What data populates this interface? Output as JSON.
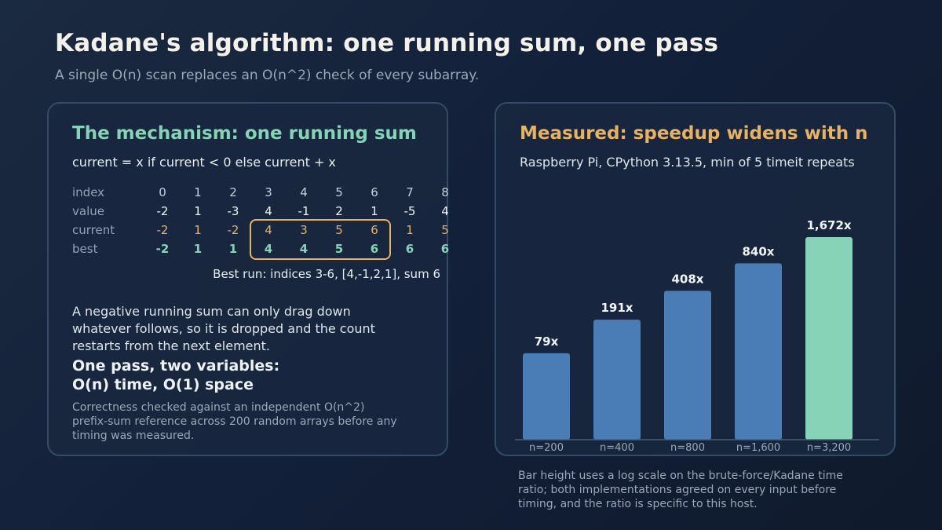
{
  "header": {
    "title": "Kadane's algorithm: one running sum, one pass",
    "subtitle": "A single O(n) scan replaces an O(n^2) check of every subarray."
  },
  "left": {
    "title": "The mechanism: one running sum",
    "formula": "current = x if current < 0 else current + x",
    "row_labels": [
      "index",
      "value",
      "current",
      "best"
    ],
    "index": [
      "0",
      "1",
      "2",
      "3",
      "4",
      "5",
      "6",
      "7",
      "8"
    ],
    "value": [
      "-2",
      "1",
      "-3",
      "4",
      "-1",
      "2",
      "1",
      "-5",
      "4"
    ],
    "current": [
      "-2",
      "1",
      "-2",
      "4",
      "3",
      "5",
      "6",
      "1",
      "5"
    ],
    "best": [
      "-2",
      "1",
      "1",
      "4",
      "4",
      "5",
      "6",
      "6",
      "6"
    ],
    "best_run": "Best run: indices 3-6, [4,-1,2,1], sum 6",
    "paragraph": "A negative running sum can only drag down whatever follows, so it is dropped and the count restarts from the next element.",
    "pass_line1": "One pass, two variables:",
    "pass_line2": "O(n) time, O(1) space",
    "note": "Correctness checked against an independent O(n^2) prefix-sum reference across 200 random arrays before any timing was measured."
  },
  "right": {
    "title": "Measured: speedup widens with n",
    "subtitle": "Raspberry Pi, CPython 3.13.5, min of 5 timeit repeats"
  },
  "chart_data": {
    "type": "bar",
    "categories": [
      "n=200",
      "n=400",
      "n=800",
      "n=1,600",
      "n=3,200"
    ],
    "values": [
      79,
      191,
      408,
      840,
      1672
    ],
    "labels": [
      "79x",
      "191x",
      "408x",
      "840x",
      "1,672x"
    ],
    "scale": "log",
    "colors": [
      "#4a7db5",
      "#4a7db5",
      "#4a7db5",
      "#4a7db5",
      "#86d3b7"
    ],
    "title": "Measured: speedup widens with n",
    "xlabel": "",
    "ylabel": ""
  },
  "footnote": "Bar height uses a log scale on the brute-force/Kadane time ratio; both implementations agreed on every input before timing, and the ratio is specific to this host."
}
